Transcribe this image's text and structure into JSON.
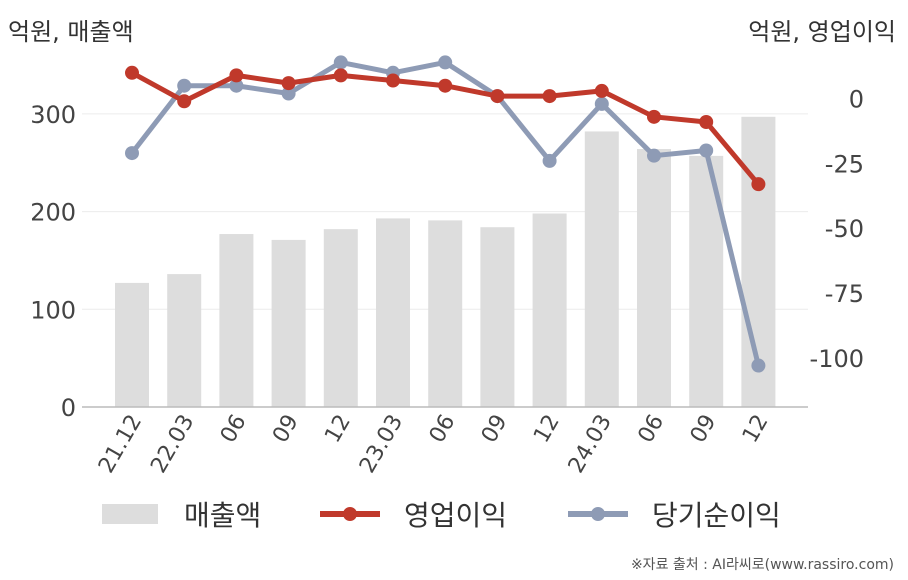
{
  "chart_data": {
    "type": "bar+line",
    "left_axis_unit": "억원, 매출액",
    "right_axis_unit": "억원, 영업이익",
    "categories": [
      "21.12",
      "22.03",
      "06",
      "09",
      "12",
      "23.03",
      "06",
      "09",
      "12",
      "24.03",
      "06",
      "09",
      "12"
    ],
    "left_axis": {
      "ticks": [
        0,
        100,
        200,
        300
      ],
      "range": [
        0,
        350
      ]
    },
    "right_axis": {
      "ticks": [
        0,
        -25,
        -50,
        -75,
        -100
      ],
      "range": [
        -119,
        13
      ]
    },
    "series": [
      {
        "name": "매출액",
        "type": "bar",
        "axis": "left",
        "color": "#dddddd",
        "values": [
          127,
          136,
          177,
          171,
          182,
          193,
          191,
          184,
          198,
          282,
          264,
          257,
          297
        ]
      },
      {
        "name": "영업이익",
        "type": "line",
        "axis": "right",
        "color": "#c0392b",
        "values": [
          10,
          -1,
          9,
          6,
          9,
          7,
          5,
          1,
          1,
          3,
          -7,
          -9,
          -33
        ]
      },
      {
        "name": "당기순이익",
        "type": "line",
        "axis": "right",
        "color": "#8e9bb5",
        "values": [
          -21,
          5,
          5,
          2,
          14,
          10,
          14,
          1,
          -24,
          -2,
          -22,
          -20,
          -103
        ]
      }
    ],
    "grid": true,
    "legend_position": "bottom"
  },
  "legend": {
    "items": [
      "매출액",
      "영업이익",
      "당기순이익"
    ]
  },
  "source_text": "※자료 출처 : AI라씨로(www.rassiro.com)"
}
